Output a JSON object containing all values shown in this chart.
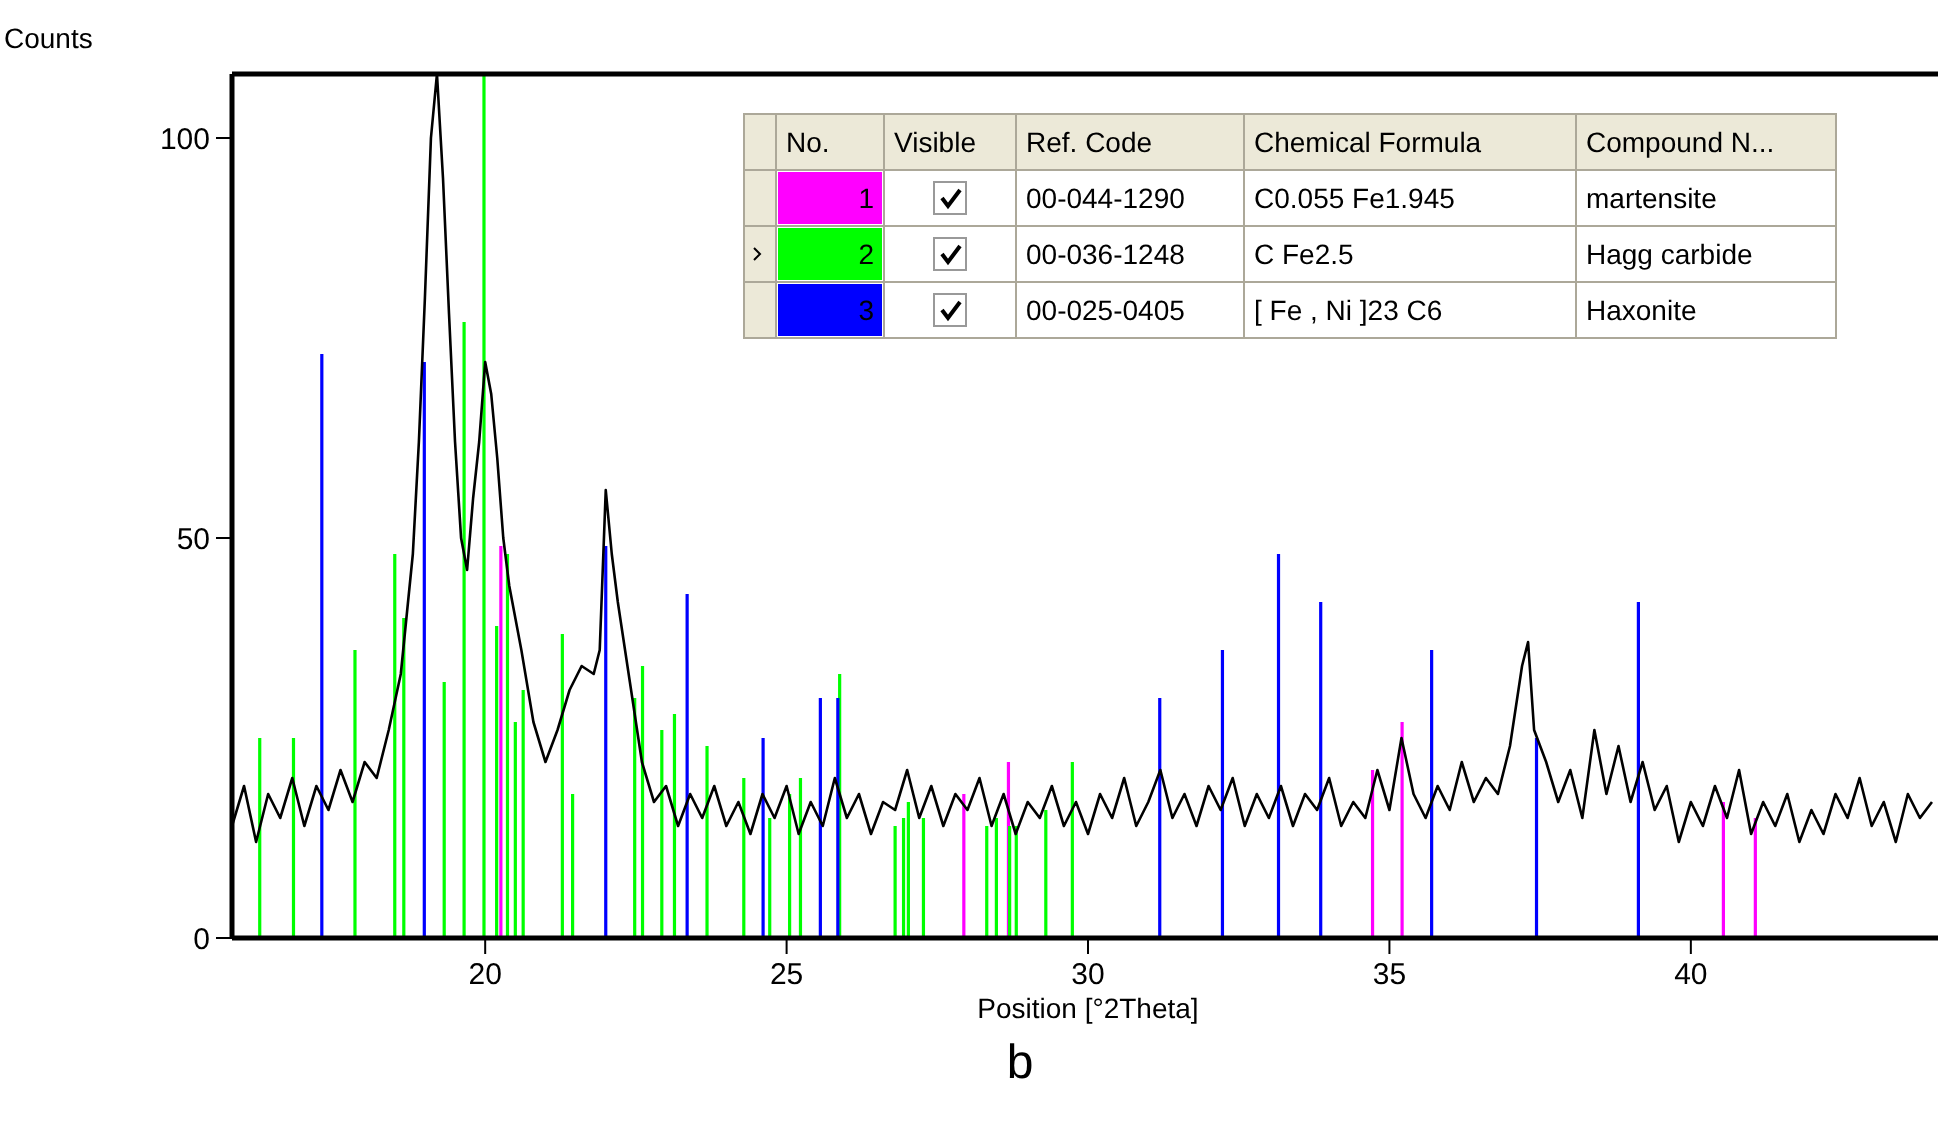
{
  "chart_data": {
    "type": "line",
    "xlabel": "Position [°2Theta]",
    "ylabel": "Counts",
    "xlim": [
      15.8,
      44.1
    ],
    "ylim": [
      0,
      108
    ],
    "xticks": [
      20,
      25,
      30,
      35,
      40
    ],
    "yticks": [
      0,
      50,
      100
    ],
    "legend": "top",
    "annotations": [
      "b",
      "No.",
      "Visible",
      "Ref. Code",
      "Chemical Formula",
      "Compound N...",
      "00-044-1290",
      "C0.055 Fe1.945",
      "martensite",
      "00-036-1248",
      "C Fe2.5",
      "Hagg carbide",
      "00-025-0405",
      "[ Fe , Ni ]23 C6",
      "Haxonite"
    ],
    "series": [
      {
        "color": "#000000",
        "x": [
          15.8,
          16.0,
          16.2,
          16.4,
          16.6,
          16.8,
          17.0,
          17.2,
          17.4,
          17.6,
          17.8,
          18.0,
          18.2,
          18.4,
          18.6,
          18.8,
          18.9,
          19.0,
          19.1,
          19.2,
          19.3,
          19.4,
          19.5,
          19.6,
          19.7,
          19.8,
          19.9,
          20.0,
          20.1,
          20.2,
          20.3,
          20.4,
          20.6,
          20.8,
          21.0,
          21.2,
          21.4,
          21.6,
          21.8,
          21.9,
          22.0,
          22.1,
          22.2,
          22.4,
          22.6,
          22.8,
          23.0,
          23.2,
          23.4,
          23.6,
          23.8,
          24.0,
          24.2,
          24.4,
          24.6,
          24.8,
          25.0,
          25.2,
          25.4,
          25.6,
          25.8,
          26.0,
          26.2,
          26.4,
          26.6,
          26.8,
          27.0,
          27.2,
          27.4,
          27.6,
          27.8,
          28.0,
          28.2,
          28.4,
          28.6,
          28.8,
          29.0,
          29.2,
          29.4,
          29.6,
          29.8,
          30.0,
          30.2,
          30.4,
          30.6,
          30.8,
          31.0,
          31.2,
          31.4,
          31.6,
          31.8,
          32.0,
          32.2,
          32.4,
          32.6,
          32.8,
          33.0,
          33.2,
          33.4,
          33.6,
          33.8,
          34.0,
          34.2,
          34.4,
          34.6,
          34.8,
          35.0,
          35.2,
          35.4,
          35.6,
          35.8,
          36.0,
          36.2,
          36.4,
          36.6,
          36.8,
          37.0,
          37.2,
          37.3,
          37.4,
          37.6,
          37.8,
          38.0,
          38.2,
          38.4,
          38.6,
          38.8,
          39.0,
          39.2,
          39.4,
          39.6,
          39.8,
          40.0,
          40.2,
          40.4,
          40.6,
          40.8,
          41.0,
          41.2,
          41.4,
          41.6,
          41.8,
          42.0,
          42.2,
          42.4,
          42.6,
          42.8,
          43.0,
          43.2,
          43.4,
          43.6,
          43.8,
          44.0
        ],
        "values": [
          14,
          19,
          12,
          18,
          15,
          20,
          14,
          19,
          16,
          21,
          17,
          22,
          20,
          26,
          33,
          48,
          62,
          80,
          100,
          108,
          95,
          78,
          62,
          50,
          46,
          55,
          62,
          72,
          68,
          60,
          50,
          44,
          36,
          27,
          22,
          26,
          31,
          34,
          33,
          36,
          56,
          48,
          42,
          32,
          22,
          17,
          19,
          14,
          18,
          15,
          19,
          14,
          17,
          13,
          18,
          15,
          19,
          13,
          17,
          14,
          20,
          15,
          18,
          13,
          17,
          16,
          21,
          15,
          19,
          14,
          18,
          16,
          20,
          14,
          18,
          13,
          17,
          15,
          19,
          14,
          17,
          13,
          18,
          15,
          20,
          14,
          17,
          21,
          15,
          18,
          14,
          19,
          16,
          20,
          14,
          18,
          15,
          19,
          14,
          18,
          16,
          20,
          14,
          17,
          15,
          21,
          16,
          25,
          18,
          15,
          19,
          16,
          22,
          17,
          20,
          18,
          24,
          34,
          37,
          26,
          22,
          17,
          21,
          15,
          26,
          18,
          24,
          17,
          22,
          16,
          19,
          12,
          17,
          14,
          19,
          15,
          21,
          13,
          17,
          14,
          18,
          12,
          16,
          13,
          18,
          15,
          20,
          14,
          17,
          12,
          18,
          15,
          17
        ]
      },
      {
        "type": "bar",
        "name": "1",
        "color": "#ff00ff",
        "x": [
          20.26,
          27.94,
          28.68,
          34.72,
          35.21,
          40.54,
          41.07
        ],
        "values": [
          49,
          18,
          22,
          21,
          27,
          17,
          15
        ]
      },
      {
        "type": "bar",
        "name": "2",
        "color": "#00ff00",
        "x": [
          16.26,
          16.82,
          17.84,
          18.5,
          18.65,
          19.32,
          19.65,
          19.98,
          20.19,
          20.37,
          20.5,
          20.63,
          21.28,
          21.45,
          22.48,
          22.61,
          22.93,
          23.14,
          23.68,
          24.29,
          24.72,
          25.05,
          25.23,
          25.88,
          26.8,
          26.94,
          27.02,
          27.27,
          28.32,
          28.48,
          28.7,
          28.81,
          29.3,
          29.74
        ],
        "values": [
          25,
          25,
          36,
          48,
          40,
          32,
          77,
          108,
          39,
          48,
          27,
          31,
          38,
          18,
          30,
          34,
          26,
          28,
          24,
          20,
          15,
          18,
          20,
          33,
          14,
          15,
          17,
          15,
          14,
          15,
          14,
          14,
          16,
          22
        ]
      },
      {
        "type": "bar",
        "name": "3",
        "color": "#0000ff",
        "x": [
          17.29,
          18.99,
          22.0,
          23.35,
          24.61,
          25.56,
          25.85,
          31.19,
          32.23,
          33.16,
          33.86,
          35.7,
          37.44,
          39.13
        ],
        "values": [
          73,
          72,
          49,
          43,
          25,
          30,
          30,
          30,
          36,
          48,
          42,
          36,
          25,
          42
        ]
      }
    ]
  }
}
